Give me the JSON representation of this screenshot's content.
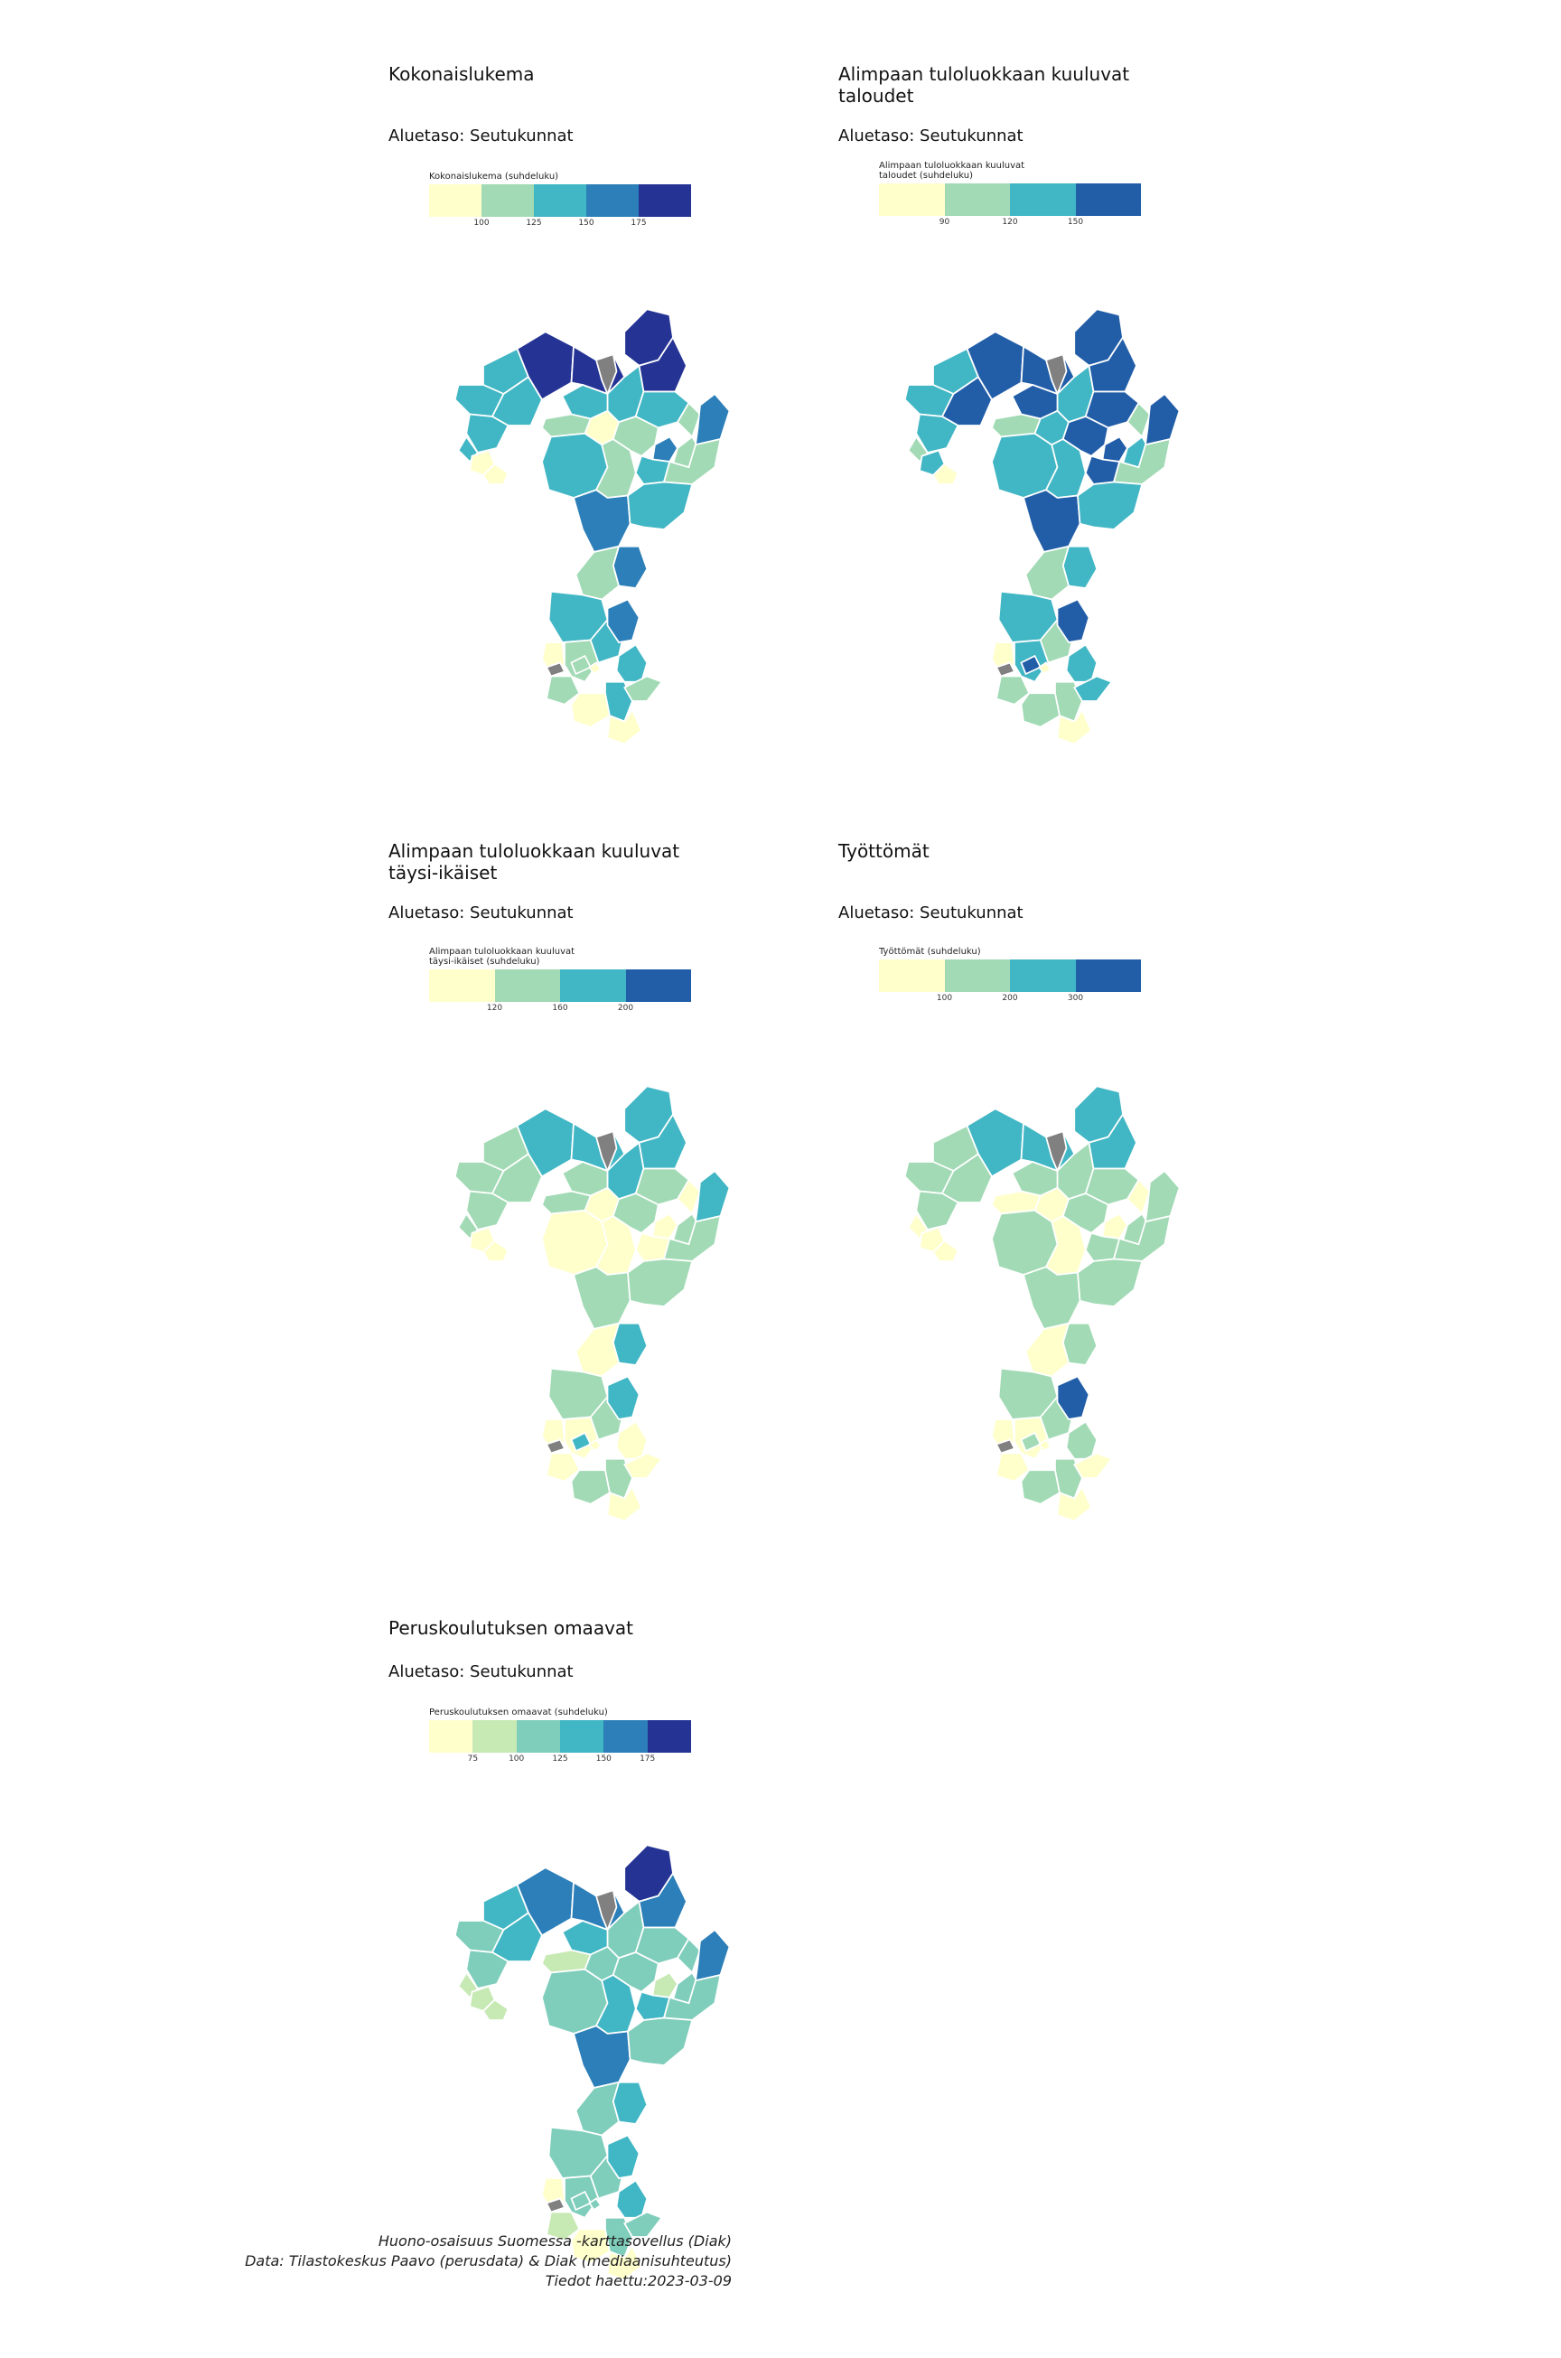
{
  "panels": [
    {
      "title": "Kokonaislukema",
      "subtitle": "Aluetaso: Seutukunnat",
      "legend_title": "Kokonaislukema (suhdeluku)",
      "legend_colors": [
        "#ffffcc",
        "#a1dab4",
        "#41b6c4",
        "#2c7fb8",
        "#253494"
      ],
      "legend_ticks": [
        "100",
        "125",
        "150",
        "175"
      ],
      "region_classes": [
        2,
        2,
        2,
        2,
        4,
        2,
        4,
        4,
        2,
        2,
        4,
        1,
        2,
        1,
        0,
        0,
        2,
        0,
        1,
        1,
        3,
        1,
        2,
        3,
        1,
        3,
        2,
        3,
        1,
        2,
        0,
        1,
        2,
        3,
        2,
        1,
        0,
        2,
        0,
        1,
        1,
        0
      ]
    },
    {
      "title": "Alimpaan tuloluokkaan kuuluvat\ntaloudet",
      "subtitle": "Aluetaso: Seutukunnat",
      "legend_title": "Alimpaan tuloluokkaan kuuluvat\ntaloudet (suhdeluku)",
      "legend_colors": [
        "#ffffcc",
        "#a1dab4",
        "#41b6c4",
        "#225ea8"
      ],
      "legend_ticks": [
        "90",
        "120",
        "150"
      ],
      "region_classes": [
        2,
        2,
        3,
        2,
        3,
        1,
        3,
        3,
        2,
        3,
        3,
        1,
        3,
        1,
        2,
        0,
        2,
        2,
        2,
        3,
        3,
        2,
        3,
        3,
        1,
        3,
        2,
        2,
        1,
        2,
        0,
        2,
        1,
        3,
        2,
        1,
        1,
        1,
        0,
        2,
        3,
        0
      ]
    },
    {
      "title": "Alimpaan tuloluokkaan kuuluvat\ntäysi-ikäiset",
      "subtitle": "Aluetaso: Seutukunnat",
      "legend_title": "Alimpaan tuloluokkaan kuuluvat\ntäysi-ikäiset (suhdeluku)",
      "legend_colors": [
        "#ffffcc",
        "#a1dab4",
        "#41b6c4",
        "#225ea8"
      ],
      "legend_ticks": [
        "120",
        "160",
        "200"
      ],
      "region_classes": [
        1,
        1,
        1,
        1,
        2,
        1,
        2,
        2,
        2,
        1,
        2,
        1,
        1,
        0,
        0,
        0,
        0,
        0,
        0,
        1,
        0,
        1,
        0,
        2,
        1,
        1,
        1,
        2,
        0,
        1,
        0,
        0,
        1,
        2,
        0,
        0,
        1,
        1,
        0,
        0,
        2,
        0
      ]
    },
    {
      "title": "Työttömät",
      "subtitle": "Aluetaso: Seutukunnat",
      "legend_title": "Työttömät (suhdeluku)",
      "legend_colors": [
        "#ffffcc",
        "#a1dab4",
        "#41b6c4",
        "#225ea8"
      ],
      "legend_ticks": [
        "100",
        "200",
        "300"
      ],
      "region_classes": [
        1,
        1,
        1,
        1,
        2,
        0,
        2,
        2,
        1,
        1,
        2,
        0,
        1,
        0,
        0,
        0,
        1,
        0,
        0,
        1,
        0,
        1,
        1,
        1,
        1,
        1,
        1,
        1,
        0,
        1,
        0,
        0,
        1,
        3,
        1,
        0,
        1,
        1,
        0,
        0,
        1,
        0
      ]
    },
    {
      "title": "Peruskoulutuksen omaavat",
      "subtitle": "Aluetaso: Seutukunnat",
      "legend_title": "Peruskoulutuksen omaavat (suhdeluku)",
      "legend_colors": [
        "#ffffcc",
        "#c7e9b4",
        "#7fcdbb",
        "#41b6c4",
        "#2c7fb8",
        "#253494"
      ],
      "legend_ticks": [
        "75",
        "100",
        "125",
        "150",
        "175"
      ],
      "region_classes": [
        3,
        2,
        3,
        2,
        4,
        1,
        4,
        5,
        2,
        3,
        4,
        1,
        2,
        2,
        1,
        1,
        2,
        2,
        3,
        2,
        1,
        2,
        3,
        4,
        2,
        4,
        2,
        3,
        2,
        2,
        0,
        2,
        2,
        3,
        3,
        1,
        0,
        2,
        0,
        2,
        2,
        2
      ]
    }
  ],
  "caption": {
    "line1": "Huono-osaisuus Suomessa -karttasovellus (Diak)",
    "line2": "Data: Tilastokeskus Paavo (perusdata) & Diak (mediaanisuhteutus)",
    "line3": "Tiedot haettu:2023-03-09"
  },
  "colors": {
    "missing": "#808080"
  }
}
